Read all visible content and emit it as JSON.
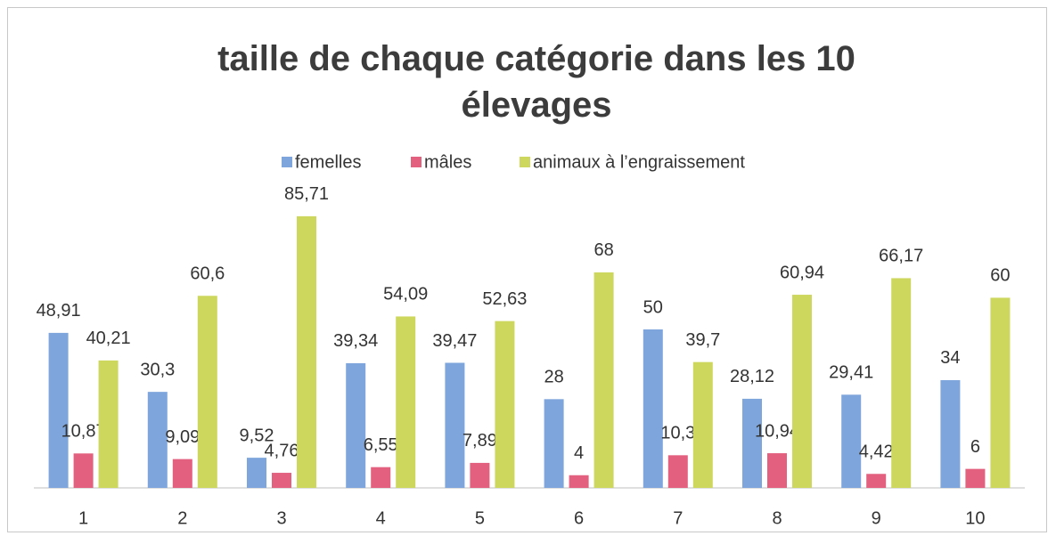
{
  "chart_data": {
    "type": "bar",
    "title": "taille de chaque catégorie dans les 10 élevages",
    "categories": [
      "1",
      "2",
      "3",
      "4",
      "5",
      "6",
      "7",
      "8",
      "9",
      "10"
    ],
    "series": [
      {
        "name": "femelles",
        "color": "#7fa6dc",
        "values": [
          48.91,
          30.3,
          9.52,
          39.34,
          39.47,
          28,
          50,
          28.12,
          29.41,
          34
        ],
        "value_labels": [
          "48,91",
          "30,3",
          "9,52",
          "39,34",
          "39,47",
          "28",
          "50",
          "28,12",
          "29,41",
          "34"
        ]
      },
      {
        "name": "mâles",
        "color": "#e3607f",
        "values": [
          10.87,
          9.09,
          4.76,
          6.55,
          7.89,
          4,
          10.3,
          10.94,
          4.42,
          6
        ],
        "value_labels": [
          "10,87",
          "9,09",
          "4,76",
          "6,55",
          "7,89",
          "4",
          "10,3",
          "10,94",
          "4,42",
          "6"
        ]
      },
      {
        "name": "animaux à l’engraissement",
        "color": "#cdd75e",
        "values": [
          40.21,
          60.6,
          85.71,
          54.09,
          52.63,
          68,
          39.7,
          60.94,
          66.17,
          60
        ],
        "value_labels": [
          "40,21",
          "60,6",
          "85,71",
          "54,09",
          "52,63",
          "68",
          "39,7",
          "60,94",
          "66,17",
          "60"
        ]
      }
    ],
    "legend": "top"
  }
}
